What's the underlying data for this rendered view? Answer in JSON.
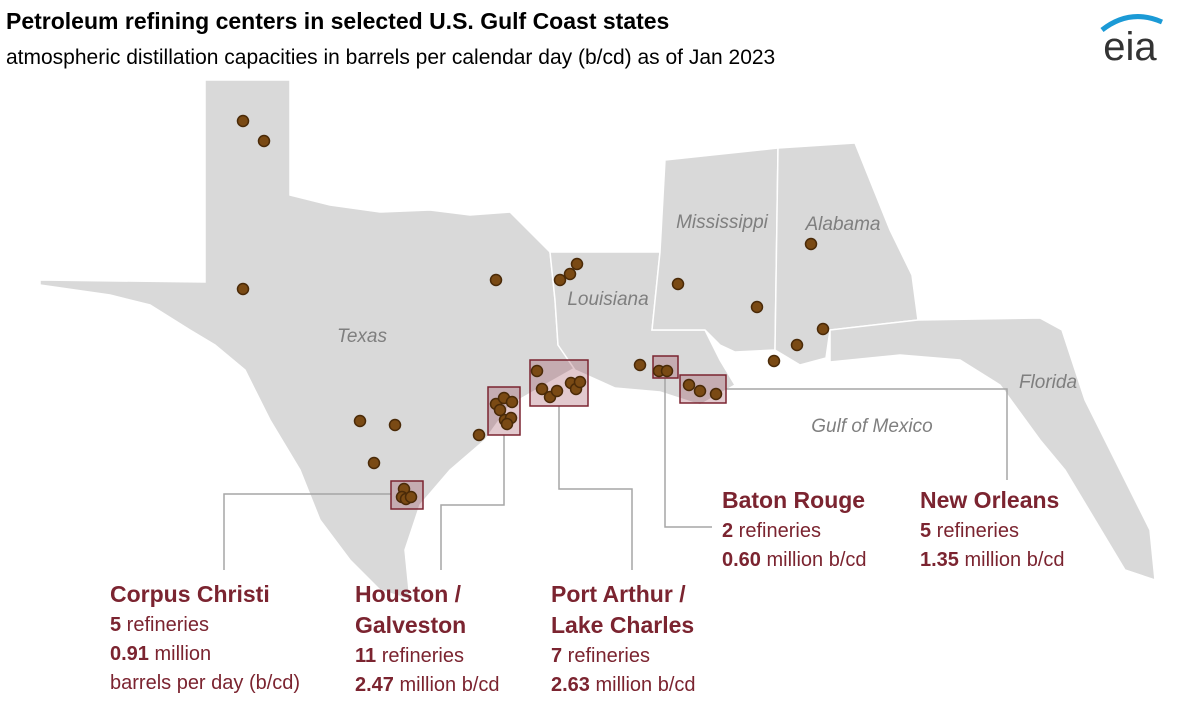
{
  "header": {
    "title": "Petroleum refining centers in selected U.S. Gulf Coast states",
    "subtitle": "atmospheric distillation capacities in barrels per calendar day (b/cd) as of Jan 2023",
    "logo": "eia"
  },
  "regions": [
    "Texas",
    "Louisiana",
    "Mississippi",
    "Alabama",
    "Florida",
    "Gulf of Mexico"
  ],
  "centers": [
    {
      "name_lines": [
        "Corpus Christi"
      ],
      "refineries": 5,
      "refineries_unit": "refineries",
      "capacity": 0.91,
      "capacity_unit": "million",
      "capacity_note": "barrels per day (b/cd)"
    },
    {
      "name_lines": [
        "Houston /",
        "Galveston"
      ],
      "refineries": 11,
      "refineries_unit": "refineries",
      "capacity": 2.47,
      "capacity_unit": "million b/cd"
    },
    {
      "name_lines": [
        "Port Arthur /",
        "Lake Charles"
      ],
      "refineries": 7,
      "refineries_unit": "refineries",
      "capacity": 2.63,
      "capacity_unit": "million b/cd"
    },
    {
      "name_lines": [
        "Baton Rouge"
      ],
      "refineries": 2,
      "refineries_unit": "refineries",
      "capacity": 0.6,
      "capacity_label": "0.60",
      "capacity_unit": "million b/cd"
    },
    {
      "name_lines": [
        "New Orleans"
      ],
      "refineries": 5,
      "refineries_unit": "refineries",
      "capacity": 1.35,
      "capacity_unit": "million b/cd"
    }
  ]
}
